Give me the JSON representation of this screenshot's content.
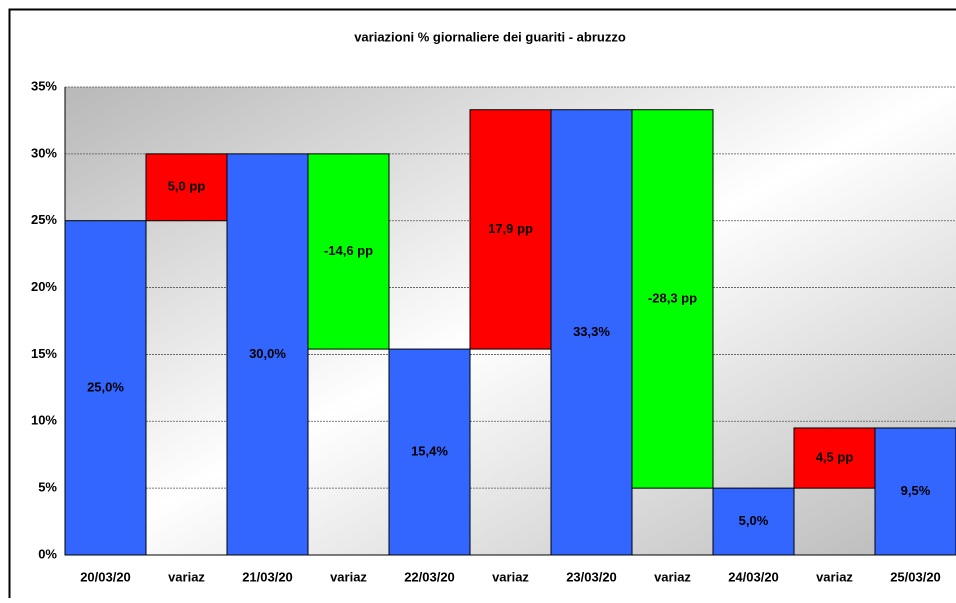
{
  "chart_data": {
    "type": "waterfall",
    "title": "variazioni % giornaliere dei guariti - abruzzo",
    "categories": [
      "20/03/20",
      "variaz",
      "21/03/20",
      "variaz",
      "22/03/20",
      "variaz",
      "23/03/20",
      "variaz",
      "24/03/20",
      "variaz",
      "25/03/20"
    ],
    "values": [
      25.0,
      5.0,
      30.0,
      -14.6,
      15.4,
      17.9,
      33.3,
      -28.3,
      5.0,
      4.5,
      9.5
    ],
    "value_labels": [
      "25,0%",
      "5,0 pp",
      "30,0%",
      "-14,6 pp",
      "15,4%",
      "17,9 pp",
      "33,3%",
      "-28,3 pp",
      "5,0%",
      "4,5 pp",
      "9,5%"
    ],
    "colors": {
      "total": "#3366ff",
      "increase": "#ff0000",
      "decrease": "#00ff00"
    },
    "ylim": [
      0,
      35
    ],
    "yticks": [
      {
        "value": 0,
        "label": "0%"
      },
      {
        "value": 5,
        "label": "5%"
      },
      {
        "value": 10,
        "label": "10%"
      },
      {
        "value": 15,
        "label": "15%"
      },
      {
        "value": 20,
        "label": "20%"
      },
      {
        "value": 25,
        "label": "25%"
      },
      {
        "value": 30,
        "label": "30%"
      },
      {
        "value": 35,
        "label": "35%"
      }
    ],
    "grid": true
  }
}
